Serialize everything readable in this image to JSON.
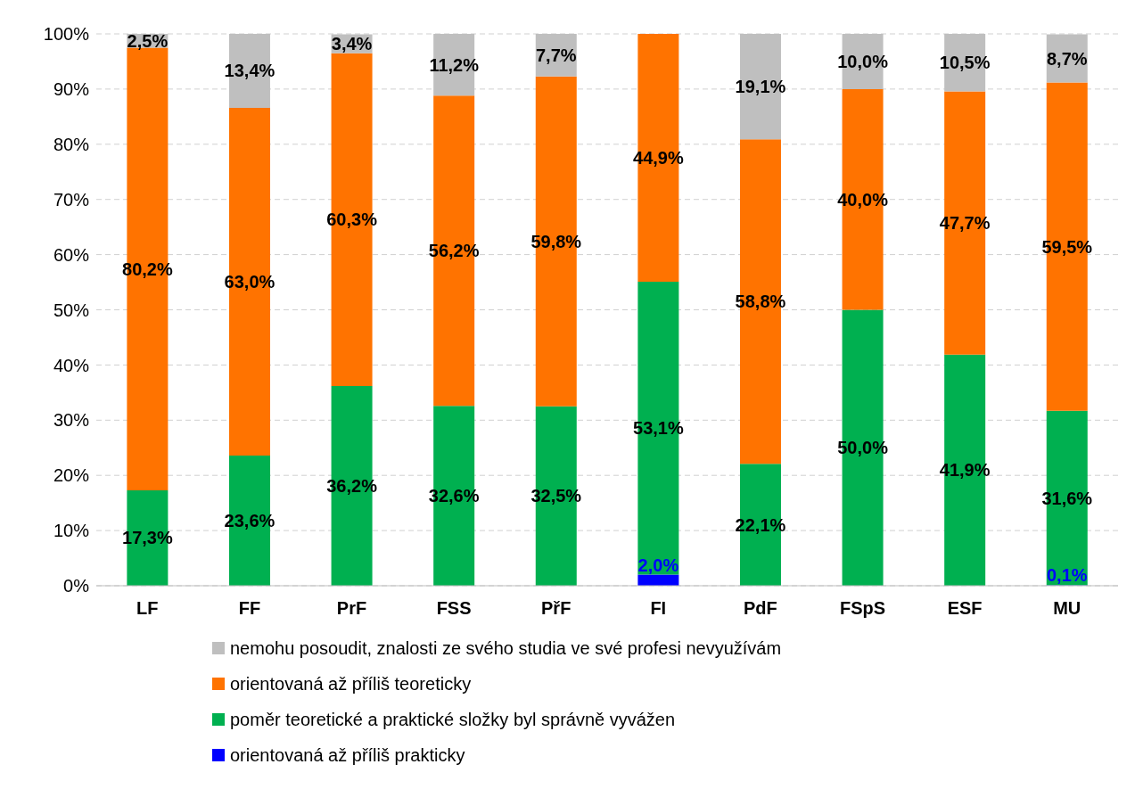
{
  "chart_data": {
    "type": "bar",
    "stacked": true,
    "categories": [
      "LF",
      "FF",
      "PrF",
      "FSS",
      "PřF",
      "FI",
      "PdF",
      "FSpS",
      "ESF",
      "MU"
    ],
    "series": [
      {
        "name": "orientovaná až příliš prakticky",
        "color": "#0000ff",
        "values": [
          null,
          null,
          null,
          null,
          null,
          2.0,
          null,
          null,
          null,
          0.1
        ],
        "value_labels": [
          null,
          null,
          null,
          null,
          null,
          "2,0%",
          null,
          null,
          null,
          "0,1%"
        ]
      },
      {
        "name": "poměr teoretické a praktické složky byl správně vyvážen",
        "color": "#00b050",
        "values": [
          17.3,
          23.6,
          36.2,
          32.6,
          32.5,
          53.1,
          22.1,
          50.0,
          41.9,
          31.6
        ],
        "value_labels": [
          "17,3%",
          "23,6%",
          "36,2%",
          "32,6%",
          "32,5%",
          "53,1%",
          "22,1%",
          "50,0%",
          "41,9%",
          "31,6%"
        ]
      },
      {
        "name": "orientovaná až příliš teoreticky",
        "color": "#ff7300",
        "values": [
          80.2,
          63.0,
          60.3,
          56.2,
          59.8,
          44.9,
          58.8,
          40.0,
          47.7,
          59.5
        ],
        "value_labels": [
          "80,2%",
          "63,0%",
          "60,3%",
          "56,2%",
          "59,8%",
          "44,9%",
          "58,8%",
          "40,0%",
          "47,7%",
          "59,5%"
        ]
      },
      {
        "name": "nemohu posoudit, znalosti ze svého studia ve své profesi nevyužívám",
        "color": "#bfbfbf",
        "values": [
          2.5,
          13.4,
          3.4,
          11.2,
          7.7,
          null,
          19.1,
          10.0,
          10.5,
          8.7
        ],
        "value_labels": [
          "2,5%",
          "13,4%",
          "3,4%",
          "11,2%",
          "7,7%",
          null,
          "19,1%",
          "10,0%",
          "10,5%",
          "8,7%"
        ]
      }
    ],
    "ylim": [
      0,
      100
    ],
    "yticks": [
      {
        "value": 0,
        "label": "0%"
      },
      {
        "value": 10,
        "label": "10%"
      },
      {
        "value": 20,
        "label": "20%"
      },
      {
        "value": 30,
        "label": "30%"
      },
      {
        "value": 40,
        "label": "40%"
      },
      {
        "value": 50,
        "label": "50%"
      },
      {
        "value": 60,
        "label": "60%"
      },
      {
        "value": 70,
        "label": "70%"
      },
      {
        "value": 80,
        "label": "80%"
      },
      {
        "value": 90,
        "label": "90%"
      },
      {
        "value": 100,
        "label": "100%"
      }
    ],
    "grid": "y",
    "legend": "bottom"
  }
}
